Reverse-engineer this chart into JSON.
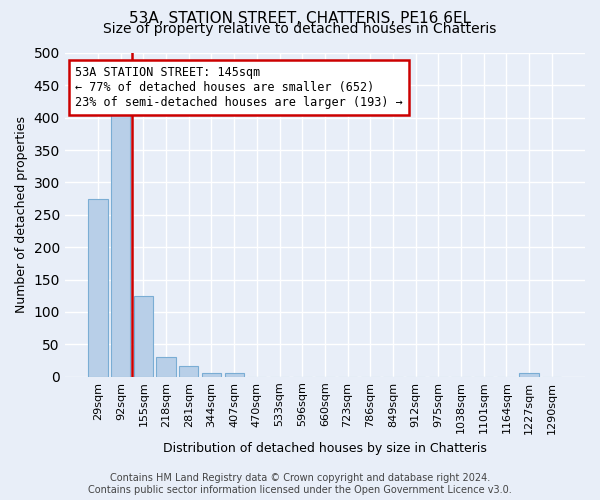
{
  "title1": "53A, STATION STREET, CHATTERIS, PE16 6EL",
  "title2": "Size of property relative to detached houses in Chatteris",
  "xlabel": "Distribution of detached houses by size in Chatteris",
  "ylabel": "Number of detached properties",
  "footer_line1": "Contains HM Land Registry data © Crown copyright and database right 2024.",
  "footer_line2": "Contains public sector information licensed under the Open Government Licence v3.0.",
  "bar_labels": [
    "29sqm",
    "92sqm",
    "155sqm",
    "218sqm",
    "281sqm",
    "344sqm",
    "407sqm",
    "470sqm",
    "533sqm",
    "596sqm",
    "660sqm",
    "723sqm",
    "786sqm",
    "849sqm",
    "912sqm",
    "975sqm",
    "1038sqm",
    "1101sqm",
    "1164sqm",
    "1227sqm",
    "1290sqm"
  ],
  "bar_values": [
    275,
    405,
    125,
    30,
    17,
    5,
    5,
    0,
    0,
    0,
    0,
    0,
    0,
    0,
    0,
    0,
    0,
    0,
    0,
    5,
    0
  ],
  "bar_color": "#b8cfe8",
  "bar_edge_color": "#7aadd4",
  "vline_color": "#cc0000",
  "annotation_text": "53A STATION STREET: 145sqm\n← 77% of detached houses are smaller (652)\n23% of semi-detached houses are larger (193) →",
  "annotation_box_color": "#ffffff",
  "annotation_box_edge_color": "#cc0000",
  "ylim": [
    0,
    500
  ],
  "yticks": [
    0,
    50,
    100,
    150,
    200,
    250,
    300,
    350,
    400,
    450,
    500
  ],
  "bg_color": "#e8eef8",
  "plot_bg_color": "#e8eef8",
  "grid_color": "#ffffff",
  "title1_fontsize": 11,
  "title2_fontsize": 10,
  "ylabel_fontsize": 9,
  "xlabel_fontsize": 9,
  "tick_fontsize": 8,
  "footer_fontsize": 7,
  "annot_fontsize": 8.5
}
